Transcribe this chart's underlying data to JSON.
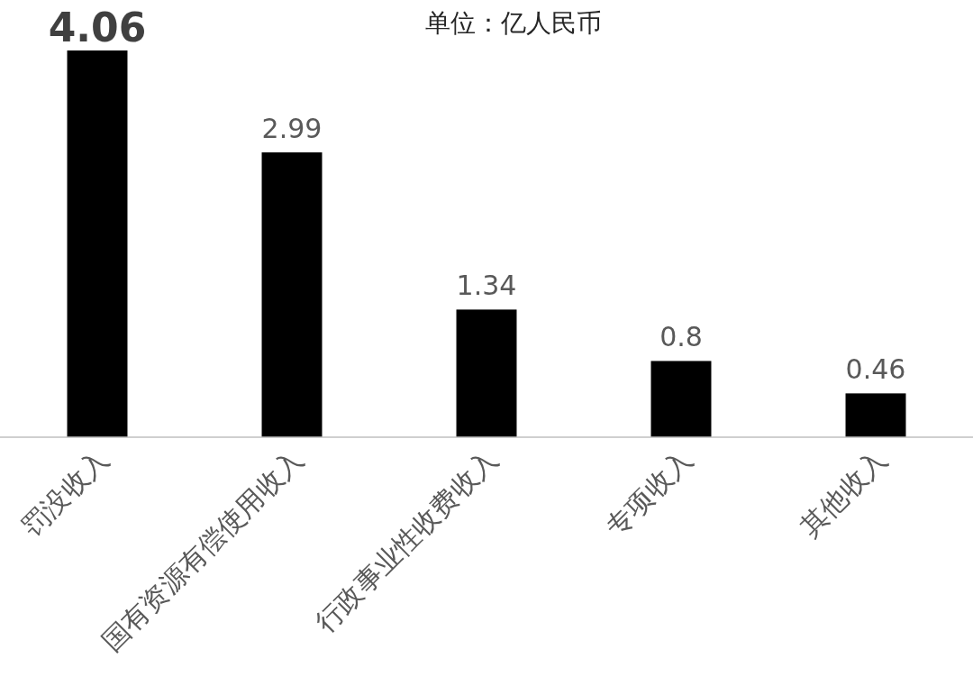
{
  "chart_data": {
    "type": "bar",
    "title": "单位：亿人民币",
    "categories": [
      "罚没收入",
      "国有资源有偿使用收入",
      "行政事业性收费收入",
      "专项收入",
      "其他收入"
    ],
    "values": [
      4.06,
      2.99,
      1.34,
      0.8,
      0.46
    ],
    "color": "#000000",
    "data_labels": true
  }
}
